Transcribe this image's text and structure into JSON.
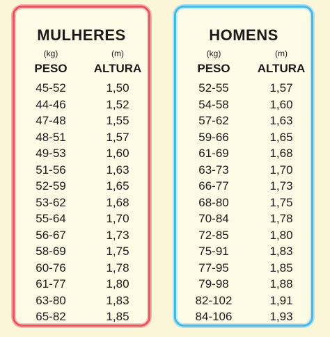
{
  "women": {
    "title": "MULHERES",
    "peso_unit": "(kg)",
    "altura_unit": "(m)",
    "peso_label": "PESO",
    "altura_label": "ALTURA",
    "rows": [
      {
        "peso": "45-52",
        "altura": "1,50"
      },
      {
        "peso": "44-46",
        "altura": "1,52"
      },
      {
        "peso": "47-48",
        "altura": "1,55"
      },
      {
        "peso": "48-51",
        "altura": "1,57"
      },
      {
        "peso": "49-53",
        "altura": "1,60"
      },
      {
        "peso": "51-56",
        "altura": "1,63"
      },
      {
        "peso": "52-59",
        "altura": "1,65"
      },
      {
        "peso": "53-62",
        "altura": "1,68"
      },
      {
        "peso": "55-64",
        "altura": "1,70"
      },
      {
        "peso": "56-67",
        "altura": "1,73"
      },
      {
        "peso": "58-69",
        "altura": "1,75"
      },
      {
        "peso": "60-76",
        "altura": "1,78"
      },
      {
        "peso": "61-77",
        "altura": "1,80"
      },
      {
        "peso": "63-80",
        "altura": "1,83"
      },
      {
        "peso": "65-82",
        "altura": "1,85"
      }
    ]
  },
  "men": {
    "title": "HOMENS",
    "peso_unit": "(kg)",
    "altura_unit": "(m)",
    "peso_label": "PESO",
    "altura_label": "ALTURA",
    "rows": [
      {
        "peso": "52-55",
        "altura": "1,57"
      },
      {
        "peso": "54-58",
        "altura": "1,60"
      },
      {
        "peso": "57-62",
        "altura": "1,63"
      },
      {
        "peso": "59-66",
        "altura": "1,65"
      },
      {
        "peso": "61-69",
        "altura": "1,68"
      },
      {
        "peso": "63-73",
        "altura": "1,70"
      },
      {
        "peso": "66-77",
        "altura": "1,73"
      },
      {
        "peso": "68-80",
        "altura": "1,75"
      },
      {
        "peso": "70-84",
        "altura": "1,78"
      },
      {
        "peso": "72-85",
        "altura": "1,80"
      },
      {
        "peso": "75-91",
        "altura": "1,83"
      },
      {
        "peso": "77-95",
        "altura": "1,85"
      },
      {
        "peso": "79-98",
        "altura": "1,88"
      },
      {
        "peso": "82-102",
        "altura": "1,91"
      },
      {
        "peso": "84-106",
        "altura": "1,93"
      }
    ]
  },
  "colors": {
    "women_border": "#e5555a",
    "men_border": "#4bb8e2",
    "background": "#fbf6d8"
  }
}
